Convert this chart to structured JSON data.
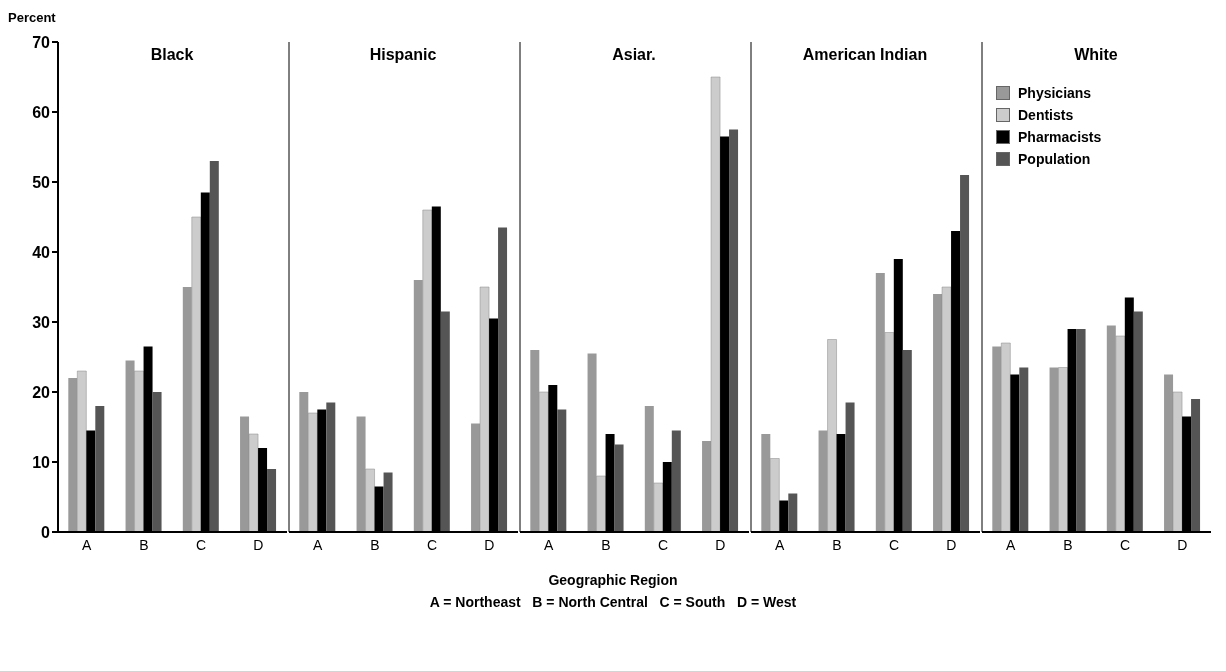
{
  "chart_data": [
    {
      "type": "bar",
      "title": "Black",
      "ylabel": "Percent",
      "categories": [
        "A",
        "B",
        "C",
        "D"
      ],
      "ylim": [
        0,
        70
      ],
      "yticks": [
        0,
        10,
        20,
        30,
        40,
        50,
        60,
        70
      ],
      "legend": false,
      "series": [
        {
          "color": "#999999",
          "values": [
            22,
            24.5,
            35,
            16.5
          ]
        },
        {
          "color": "#cccccc",
          "values": [
            23,
            23,
            45,
            14
          ]
        },
        {
          "color": "#000000",
          "values": [
            14.5,
            26.5,
            48.5,
            12
          ]
        },
        {
          "color": "#555555",
          "values": [
            18,
            20,
            53,
            9
          ]
        }
      ]
    },
    {
      "type": "bar",
      "title": "Hispanic",
      "categories": [
        "A",
        "B",
        "C",
        "D"
      ],
      "ylim": [
        0,
        70
      ],
      "yticks": [
        0,
        10,
        20,
        30,
        40,
        50,
        60,
        70
      ],
      "tick_labels": "x",
      "legend": false,
      "series": [
        {
          "color": "#999999",
          "values": [
            20,
            16.5,
            36,
            15.5
          ]
        },
        {
          "color": "#cccccc",
          "values": [
            17,
            9,
            46,
            35
          ]
        },
        {
          "color": "#000000",
          "values": [
            17.5,
            6.5,
            46.5,
            30.5
          ]
        },
        {
          "color": "#555555",
          "values": [
            18.5,
            8.5,
            31.5,
            43.5
          ]
        }
      ]
    },
    {
      "type": "bar",
      "title": "Asiar.",
      "xlabel": "Geographic Region",
      "annotations": [
        "A = Northeast   B = North Central   C = South   D = West"
      ],
      "categories": [
        "A",
        "B",
        "C",
        "D"
      ],
      "ylim": [
        0,
        70
      ],
      "yticks": [
        0,
        10,
        20,
        30,
        40,
        50,
        60,
        70
      ],
      "tick_labels": "x",
      "legend": false,
      "series": [
        {
          "color": "#999999",
          "values": [
            26,
            25.5,
            18,
            13
          ]
        },
        {
          "color": "#cccccc",
          "values": [
            20,
            8,
            7,
            65
          ]
        },
        {
          "color": "#000000",
          "values": [
            21,
            14,
            10,
            56.5
          ]
        },
        {
          "color": "#555555",
          "values": [
            17.5,
            12.5,
            14.5,
            57.5
          ]
        }
      ]
    },
    {
      "type": "bar",
      "title": "American Indian",
      "categories": [
        "A",
        "B",
        "C",
        "D"
      ],
      "ylim": [
        0,
        70
      ],
      "yticks": [
        0,
        10,
        20,
        30,
        40,
        50,
        60,
        70
      ],
      "tick_labels": "x",
      "legend": false,
      "series": [
        {
          "color": "#999999",
          "values": [
            14,
            14.5,
            37,
            34
          ]
        },
        {
          "color": "#cccccc",
          "values": [
            10.5,
            27.5,
            28.5,
            35
          ]
        },
        {
          "color": "#000000",
          "values": [
            4.5,
            14,
            39,
            43
          ]
        },
        {
          "color": "#555555",
          "values": [
            5.5,
            18.5,
            26,
            51
          ]
        }
      ]
    },
    {
      "type": "bar",
      "title": "White",
      "categories": [
        "A",
        "B",
        "C",
        "D"
      ],
      "ylim": [
        0,
        70
      ],
      "yticks": [
        0,
        10,
        20,
        30,
        40,
        50,
        60,
        70
      ],
      "tick_labels": "x",
      "legend": "top left",
      "series": [
        {
          "name": "Physicians",
          "color": "#999999",
          "values": [
            26.5,
            23.5,
            29.5,
            22.5
          ]
        },
        {
          "name": "Dentists",
          "color": "#cccccc",
          "values": [
            27,
            23.5,
            28,
            20
          ]
        },
        {
          "name": "Pharmacists",
          "color": "#000000",
          "values": [
            22.5,
            29,
            33.5,
            16.5
          ]
        },
        {
          "name": "Population",
          "color": "#555555",
          "values": [
            23.5,
            29,
            31.5,
            19
          ]
        }
      ]
    }
  ]
}
